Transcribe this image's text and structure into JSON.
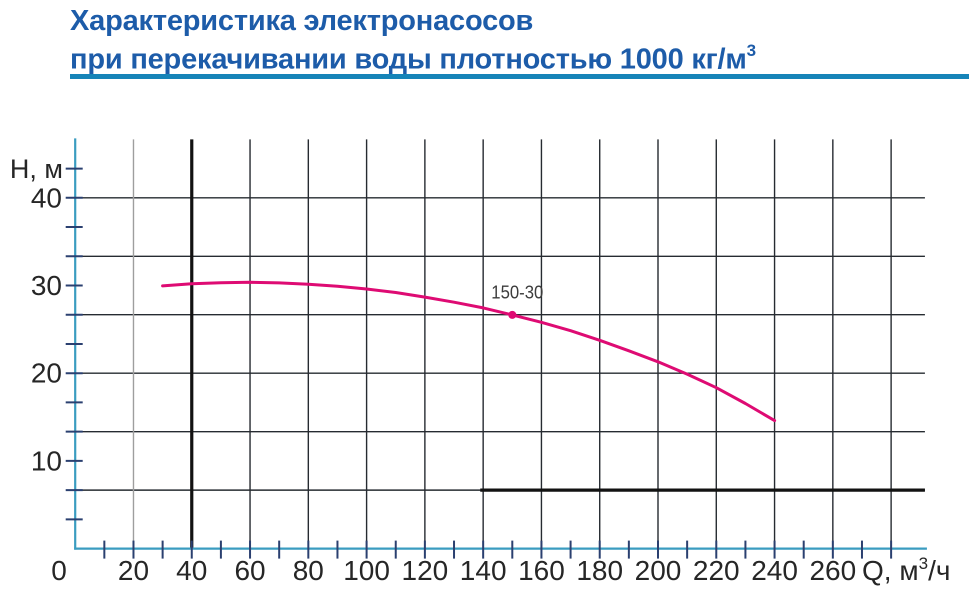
{
  "title": {
    "line1": "Характеристика электронасосов",
    "line2": "при перекачивании воды плотностью 1000 кг/м",
    "line2_sup": "3",
    "color": "#1d5ca9"
  },
  "accent_bar_color": "#1684b8",
  "chart_data": {
    "type": "line",
    "title": "",
    "xlabel_prefix": "Q, м",
    "xlabel_sup": "3",
    "xlabel_suffix": "/ч",
    "ylabel": "Н, м",
    "xlim": [
      0,
      291.6
    ],
    "ylim": [
      0,
      46.667
    ],
    "x_tick_step": 10,
    "x_tick_max": 280,
    "x_tick_labels": [
      0,
      20,
      40,
      60,
      80,
      100,
      120,
      140,
      160,
      180,
      200,
      220,
      240,
      260
    ],
    "y_tick_step": 3.3333,
    "y_tick_count": 13,
    "y_tick_labels": [
      10,
      20,
      30,
      40
    ],
    "ylabel_level": 43.333,
    "grid": {
      "x_step": 20,
      "x_max": 280,
      "y_step": 6.6667,
      "y_rows": 6,
      "faded_x": 20,
      "bold_x": 40
    },
    "extra_line": {
      "h": 6.6667,
      "q_from": 139,
      "to_right_edge": true
    },
    "legend_position": "none",
    "series": [
      {
        "name": "150-30",
        "x": [
          30,
          40,
          50,
          60,
          70,
          80,
          90,
          100,
          110,
          120,
          130,
          140,
          150,
          160,
          170,
          180,
          190,
          200,
          210,
          220,
          230,
          240
        ],
        "y": [
          29.95,
          30.2,
          30.32,
          30.36,
          30.3,
          30.15,
          29.92,
          29.6,
          29.2,
          28.68,
          28.1,
          27.45,
          26.65,
          25.8,
          24.85,
          23.75,
          22.55,
          21.3,
          19.9,
          18.35,
          16.55,
          14.6
        ],
        "color": "#de0b73",
        "label_point": {
          "x": 150,
          "y": 26.65
        },
        "duty_point_label": "150-30"
      }
    ],
    "colors": {
      "grid": "#262b31",
      "grid_faded": "#9e9e9e",
      "grid_bold": "#121212",
      "axis": "#3a9cc0",
      "tick": "#2b4070",
      "tick_label": "#262626",
      "curve_label": "#3d3d3d"
    }
  }
}
